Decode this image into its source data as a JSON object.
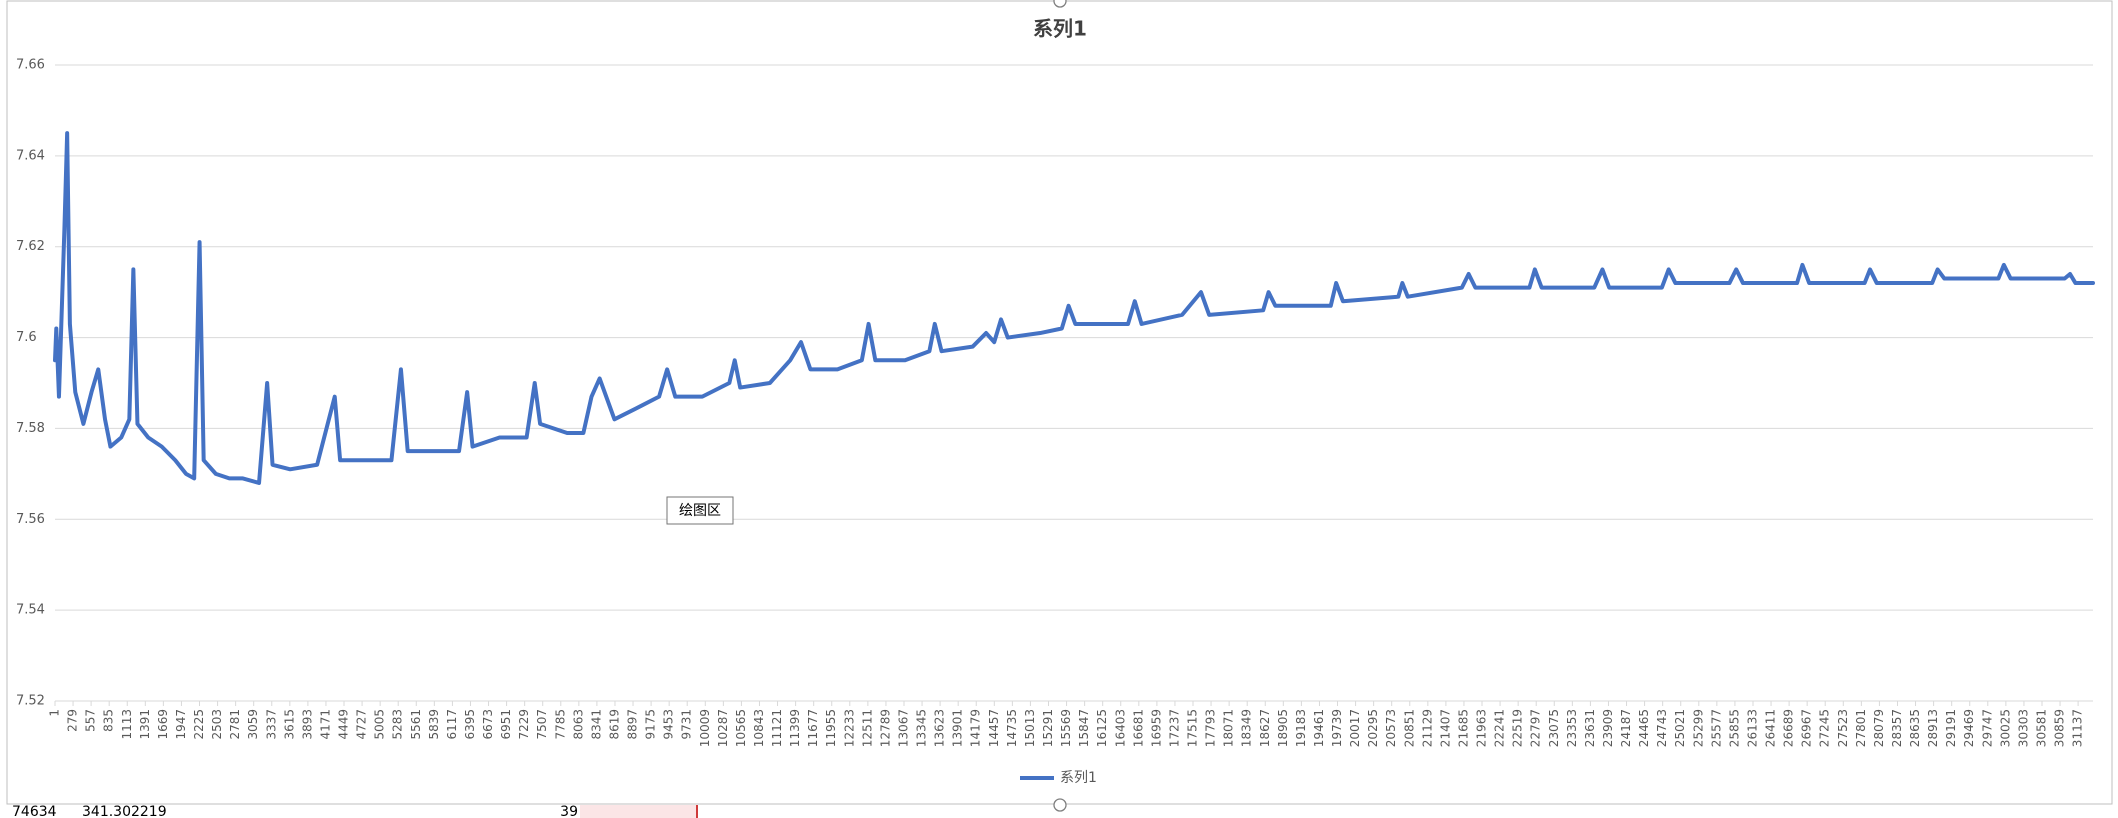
{
  "chart_data": {
    "type": "line",
    "title": "系列1",
    "x": [
      1,
      21,
      62,
      146,
      188,
      230,
      313,
      438,
      563,
      667,
      771,
      854,
      1020,
      1145,
      1207,
      1270,
      1436,
      1644,
      1852,
      2018,
      2143,
      2226,
      2289,
      2476,
      2684,
      2892,
      3141,
      3266,
      3349,
      3620,
      4035,
      4306,
      4389,
      4763,
      5179,
      5325,
      5429,
      5803,
      6219,
      6344,
      6427,
      6843,
      7259,
      7384,
      7467,
      7883,
      8133,
      8258,
      8383,
      8611,
      9027,
      9298,
      9422,
      9547,
      9963,
      10379,
      10462,
      10546,
      11003,
      11315,
      11482,
      11627,
      12043,
      12418,
      12522,
      12626,
      13083,
      13458,
      13541,
      13645,
      14123,
      14331,
      14456,
      14560,
      14664,
      15163,
      15496,
      15600,
      15704,
      16515,
      16619,
      16723,
      17347,
      17638,
      17763,
      18595,
      18678,
      18782,
      19635,
      19718,
      19822,
      20675,
      20737,
      20820,
      21653,
      21757,
      21861,
      22693,
      22776,
      22880,
      23691,
      23816,
      23920,
      24731,
      24835,
      24939,
      25771,
      25875,
      25979,
      26811,
      26894,
      26998,
      27851,
      27934,
      28038,
      28891,
      28974,
      29078,
      29910,
      29994,
      30098,
      30930,
      31013,
      31096,
      31366
    ],
    "series": [
      {
        "name": "系列1",
        "color": "#4472c4",
        "values": [
          7.595,
          7.602,
          7.587,
          7.624,
          7.645,
          7.603,
          7.588,
          7.581,
          7.588,
          7.593,
          7.582,
          7.576,
          7.578,
          7.582,
          7.615,
          7.581,
          7.578,
          7.576,
          7.573,
          7.57,
          7.569,
          7.621,
          7.573,
          7.57,
          7.569,
          7.569,
          7.568,
          7.59,
          7.572,
          7.571,
          7.572,
          7.587,
          7.573,
          7.573,
          7.573,
          7.593,
          7.575,
          7.575,
          7.575,
          7.588,
          7.576,
          7.578,
          7.578,
          7.59,
          7.581,
          7.579,
          7.579,
          7.587,
          7.591,
          7.582,
          7.585,
          7.587,
          7.593,
          7.587,
          7.587,
          7.59,
          7.595,
          7.589,
          7.59,
          7.595,
          7.599,
          7.593,
          7.593,
          7.595,
          7.603,
          7.595,
          7.595,
          7.597,
          7.603,
          7.597,
          7.598,
          7.601,
          7.599,
          7.604,
          7.6,
          7.601,
          7.602,
          7.607,
          7.603,
          7.603,
          7.608,
          7.603,
          7.605,
          7.61,
          7.605,
          7.606,
          7.61,
          7.607,
          7.607,
          7.612,
          7.608,
          7.609,
          7.612,
          7.609,
          7.611,
          7.614,
          7.611,
          7.611,
          7.615,
          7.611,
          7.611,
          7.615,
          7.611,
          7.611,
          7.615,
          7.612,
          7.612,
          7.615,
          7.612,
          7.612,
          7.616,
          7.612,
          7.612,
          7.615,
          7.612,
          7.612,
          7.615,
          7.613,
          7.613,
          7.616,
          7.613,
          7.613,
          7.614,
          7.612,
          7.612
        ]
      }
    ],
    "xlim": [
      1,
      31366
    ],
    "xticks": [
      1,
      279,
      557,
      835,
      1113,
      1391,
      1669,
      1947,
      2225,
      2503,
      2781,
      3059,
      3337,
      3615,
      3893,
      4171,
      4449,
      4727,
      5005,
      5283,
      5561,
      5839,
      6117,
      6395,
      6673,
      6951,
      7229,
      7507,
      7785,
      8063,
      8341,
      8619,
      8897,
      9175,
      9453,
      9731,
      10009,
      10287,
      10565,
      10843,
      11121,
      11399,
      11677,
      11955,
      12233,
      12511,
      12789,
      13067,
      13345,
      13623,
      13901,
      14179,
      14457,
      14735,
      15013,
      15291,
      15569,
      15847,
      16125,
      16403,
      16681,
      16959,
      17237,
      17515,
      17793,
      18071,
      18349,
      18627,
      18905,
      19183,
      19461,
      19739,
      20017,
      20295,
      20573,
      20851,
      21129,
      21407,
      21685,
      21963,
      22241,
      22519,
      22797,
      23075,
      23353,
      23631,
      23909,
      24187,
      24465,
      24743,
      25021,
      25299,
      25577,
      25855,
      26133,
      26411,
      26689,
      26967,
      27245,
      27523,
      27801,
      28079,
      28357,
      28635,
      28913,
      29191,
      29469,
      29747,
      30025,
      30303,
      30581,
      30859,
      31137
    ],
    "ylim": [
      7.52,
      7.66
    ],
    "yticks": [
      7.52,
      7.54,
      7.56,
      7.58,
      7.6,
      7.62,
      7.64,
      7.66
    ],
    "grid": true,
    "legend": "bottom"
  },
  "ui": {
    "tooltip": "绘图区",
    "cells": [
      "74634",
      "341.302219",
      "39"
    ]
  }
}
